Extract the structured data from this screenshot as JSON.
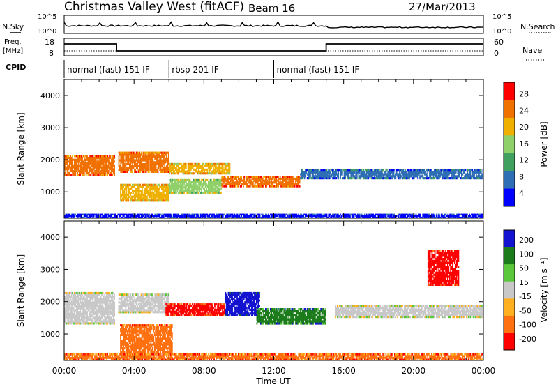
{
  "header": {
    "station": "Christmas Valley West (fitACF)",
    "beam": "Beam 16",
    "date": "27/Mar/2013"
  },
  "nsky_panel": {
    "left_label": "N.Sky",
    "left_ticks": [
      "10^5",
      "10^0"
    ],
    "right_ticks": [
      "10^5",
      "10^0"
    ],
    "right_label": "N.Search"
  },
  "freq_panel": {
    "left_label_line1": "Freq.",
    "left_label_line2": "[MHz]",
    "left_ticks": [
      "18",
      "8"
    ],
    "right_ticks": [
      "60",
      "0"
    ],
    "right_label": "Nave"
  },
  "cpid": {
    "label": "CPID",
    "segments": [
      {
        "start_hour": 0,
        "end_hour": 6,
        "text": "normal (fast) 151 IF"
      },
      {
        "start_hour": 6,
        "end_hour": 12,
        "text": "rbsp 201 IF"
      },
      {
        "start_hour": 12,
        "end_hour": 24,
        "text": "normal (fast) 151 IF"
      }
    ]
  },
  "colors": {
    "power": [
      "#0000ff",
      "#2e6eb5",
      "#40a060",
      "#8fd06a",
      "#f0b000",
      "#f07000",
      "#ff0000"
    ],
    "velocity": [
      "#1212d0",
      "#1c7c1c",
      "#5ac83a",
      "#c8c8c8",
      "#ffb020",
      "#ff7010",
      "#ff0000"
    ]
  },
  "chart_data": [
    {
      "type": "heatmap",
      "name": "power",
      "ylabel": "Slant Range [km]",
      "yticks": [
        "4000",
        "3000",
        "2000",
        "1000"
      ],
      "ylim": [
        180,
        4500
      ],
      "xlim": [
        0,
        24
      ],
      "colorbar": {
        "label": "Power [dB]",
        "ticks": [
          "28",
          "24",
          "20",
          "16",
          "12",
          "8",
          "4"
        ]
      },
      "bands": [
        {
          "t0": 0.0,
          "t1": 2.9,
          "r0": 1500,
          "r1": 2150,
          "value": 26
        },
        {
          "t0": 3.1,
          "t1": 6.0,
          "r0": 1600,
          "r1": 2250,
          "value": 24
        },
        {
          "t0": 3.2,
          "t1": 6.0,
          "r0": 700,
          "r1": 1250,
          "value": 20
        },
        {
          "t0": 6.0,
          "t1": 9.0,
          "r0": 950,
          "r1": 1400,
          "value": 16
        },
        {
          "t0": 6.0,
          "t1": 9.5,
          "r0": 1550,
          "r1": 1900,
          "value": 22
        },
        {
          "t0": 9.0,
          "t1": 13.5,
          "r0": 1150,
          "r1": 1500,
          "value": 24
        },
        {
          "t0": 13.5,
          "t1": 24.0,
          "r0": 1400,
          "r1": 1700,
          "value": 8
        },
        {
          "t0": 0.0,
          "t1": 24.0,
          "r0": 180,
          "r1": 320,
          "value": 6
        }
      ]
    },
    {
      "type": "heatmap",
      "name": "velocity",
      "xlabel": "Time UT",
      "ylabel": "Slant Range [km]",
      "yticks": [
        "4000",
        "3000",
        "2000",
        "1000"
      ],
      "ylim": [
        180,
        4500
      ],
      "xlim": [
        0,
        24
      ],
      "xticks": [
        "00:00",
        "04:00",
        "08:00",
        "12:00",
        "16:00",
        "20:00",
        "00:00"
      ],
      "colorbar": {
        "label": "Velocity [m s⁻¹]",
        "ticks": [
          "200",
          "100",
          "50",
          "15",
          "-15",
          "-50",
          "-100",
          "-200"
        ]
      },
      "bands": [
        {
          "t0": 0.0,
          "t1": 2.9,
          "r0": 1300,
          "r1": 2300,
          "value": 0
        },
        {
          "t0": 3.1,
          "t1": 6.0,
          "r0": 1650,
          "r1": 2250,
          "value": 0
        },
        {
          "t0": 3.2,
          "t1": 6.2,
          "r0": 350,
          "r1": 1300,
          "value": -80
        },
        {
          "t0": 5.8,
          "t1": 9.2,
          "r0": 1550,
          "r1": 1950,
          "value": -220
        },
        {
          "t0": 9.2,
          "t1": 11.2,
          "r0": 1550,
          "r1": 2300,
          "value": 220
        },
        {
          "t0": 11.0,
          "t1": 15.0,
          "r0": 1300,
          "r1": 1800,
          "value": 60
        },
        {
          "t0": 15.5,
          "t1": 24.0,
          "r0": 1500,
          "r1": 1900,
          "value": 0
        },
        {
          "t0": 20.8,
          "t1": 22.6,
          "r0": 2500,
          "r1": 3600,
          "value": -220
        },
        {
          "t0": 0.0,
          "t1": 24.0,
          "r0": 180,
          "r1": 400,
          "value": -60
        }
      ]
    }
  ]
}
